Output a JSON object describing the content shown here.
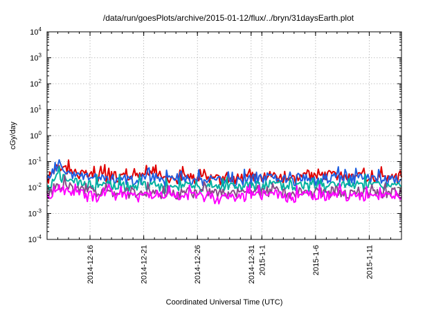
{
  "chart_data": {
    "type": "line",
    "title": "/data/run/goesPlots/archive/2015-01-12/flux/../bryn/31daysEarth.plot",
    "xlabel": "Coordinated Universal Time (UTC)",
    "ylabel": "cGy/day",
    "yscale": "log",
    "ylim": [
      0.0001,
      10000
    ],
    "xlim": [
      "2014-12-12",
      "2015-01-14"
    ],
    "grid": true,
    "x_tick_labels": [
      "2014-12-16",
      "2014-12-21",
      "2014-12-26",
      "2014-12-31",
      "2015-1-1",
      "2015-1-6",
      "2015-1-11"
    ],
    "x_tick_dates": [
      "2014-12-16",
      "2014-12-21",
      "2014-12-26",
      "2014-12-31",
      "2015-01-01",
      "2015-01-06",
      "2015-01-11"
    ],
    "y_tick_labels": [
      {
        "base": "10",
        "exp": "-4"
      },
      {
        "base": "10",
        "exp": "-3"
      },
      {
        "base": "10",
        "exp": "-2"
      },
      {
        "base": "10",
        "exp": "-1"
      },
      {
        "base": "10",
        "exp": "0"
      },
      {
        "base": "10",
        "exp": "1"
      },
      {
        "base": "10",
        "exp": "2"
      },
      {
        "base": "10",
        "exp": "3"
      },
      {
        "base": "10",
        "exp": "4"
      }
    ],
    "y_tick_values": [
      0.0001,
      0.001,
      0.01,
      0.1,
      1,
      10,
      100,
      1000,
      10000
    ],
    "series": [
      {
        "color": "#e00000",
        "x": [
          "2014-12-12",
          "2014-12-13",
          "2014-12-14",
          "2014-12-15",
          "2014-12-16",
          "2014-12-17",
          "2014-12-18",
          "2014-12-19",
          "2014-12-20",
          "2014-12-21",
          "2014-12-22",
          "2014-12-23",
          "2014-12-24",
          "2014-12-25",
          "2014-12-26",
          "2014-12-27",
          "2014-12-28",
          "2014-12-29",
          "2014-12-30",
          "2014-12-31",
          "2015-01-01",
          "2015-01-02",
          "2015-01-03",
          "2015-01-04",
          "2015-01-05",
          "2015-01-06",
          "2015-01-07",
          "2015-01-08",
          "2015-01-09",
          "2015-01-10",
          "2015-01-11",
          "2015-01-12",
          "2015-01-13",
          "2015-01-14"
        ],
        "values": [
          0.02,
          0.09,
          0.05,
          0.035,
          0.03,
          0.028,
          0.03,
          0.027,
          0.025,
          0.03,
          0.04,
          0.022,
          0.025,
          0.028,
          0.024,
          0.026,
          0.022,
          0.025,
          0.023,
          0.028,
          0.03,
          0.032,
          0.025,
          0.024,
          0.03,
          0.026,
          0.028,
          0.032,
          0.024,
          0.03,
          0.026,
          0.028,
          0.024,
          0.025
        ]
      },
      {
        "color": "#1f5fe0",
        "x": [
          "2014-12-12",
          "2014-12-13",
          "2014-12-14",
          "2014-12-15",
          "2014-12-16",
          "2014-12-17",
          "2014-12-18",
          "2014-12-19",
          "2014-12-20",
          "2014-12-21",
          "2014-12-22",
          "2014-12-23",
          "2014-12-24",
          "2014-12-25",
          "2014-12-26",
          "2014-12-27",
          "2014-12-28",
          "2014-12-29",
          "2014-12-30",
          "2014-12-31",
          "2015-01-01",
          "2015-01-02",
          "2015-01-03",
          "2015-01-04",
          "2015-01-05",
          "2015-01-06",
          "2015-01-07",
          "2015-01-08",
          "2015-01-09",
          "2015-01-10",
          "2015-01-11",
          "2015-01-12",
          "2015-01-13",
          "2015-01-14"
        ],
        "values": [
          0.015,
          0.07,
          0.04,
          0.028,
          0.025,
          0.022,
          0.024,
          0.022,
          0.02,
          0.024,
          0.028,
          0.019,
          0.02,
          0.022,
          0.02,
          0.021,
          0.019,
          0.02,
          0.02,
          0.022,
          0.025,
          0.026,
          0.021,
          0.02,
          0.025,
          0.022,
          0.023,
          0.026,
          0.02,
          0.024,
          0.022,
          0.023,
          0.02,
          0.021
        ]
      },
      {
        "color": "#00b0a0",
        "x": [
          "2014-12-12",
          "2014-12-13",
          "2014-12-14",
          "2014-12-15",
          "2014-12-16",
          "2014-12-17",
          "2014-12-18",
          "2014-12-19",
          "2014-12-20",
          "2014-12-21",
          "2014-12-22",
          "2014-12-23",
          "2014-12-24",
          "2014-12-25",
          "2014-12-26",
          "2014-12-27",
          "2014-12-28",
          "2014-12-29",
          "2014-12-30",
          "2014-12-31",
          "2015-01-01",
          "2015-01-02",
          "2015-01-03",
          "2015-01-04",
          "2015-01-05",
          "2015-01-06",
          "2015-01-07",
          "2015-01-08",
          "2015-01-09",
          "2015-01-10",
          "2015-01-11",
          "2015-01-12",
          "2015-01-13",
          "2015-01-14"
        ],
        "values": [
          0.008,
          0.03,
          0.02,
          0.014,
          0.013,
          0.012,
          0.013,
          0.012,
          0.011,
          0.012,
          0.014,
          0.01,
          0.011,
          0.012,
          0.011,
          0.012,
          0.01,
          0.011,
          0.011,
          0.012,
          0.013,
          0.014,
          0.011,
          0.011,
          0.013,
          0.012,
          0.012,
          0.014,
          0.011,
          0.013,
          0.012,
          0.012,
          0.011,
          0.011
        ]
      },
      {
        "color": "#8a4a8a",
        "x": [
          "2014-12-12",
          "2014-12-13",
          "2014-12-14",
          "2014-12-15",
          "2014-12-16",
          "2014-12-17",
          "2014-12-18",
          "2014-12-19",
          "2014-12-20",
          "2014-12-21",
          "2014-12-22",
          "2014-12-23",
          "2014-12-24",
          "2014-12-25",
          "2014-12-26",
          "2014-12-27",
          "2014-12-28",
          "2014-12-29",
          "2014-12-30",
          "2014-12-31",
          "2015-01-01",
          "2015-01-02",
          "2015-01-03",
          "2015-01-04",
          "2015-01-05",
          "2015-01-06",
          "2015-01-07",
          "2015-01-08",
          "2015-01-09",
          "2015-01-10",
          "2015-01-11",
          "2015-01-12",
          "2015-01-13",
          "2015-01-14"
        ],
        "values": [
          0.005,
          0.015,
          0.009,
          0.008,
          0.007,
          0.007,
          0.0075,
          0.007,
          0.0065,
          0.007,
          0.008,
          0.006,
          0.0065,
          0.007,
          0.0065,
          0.007,
          0.006,
          0.0065,
          0.0065,
          0.007,
          0.0075,
          0.008,
          0.0065,
          0.0065,
          0.0075,
          0.007,
          0.007,
          0.008,
          0.0065,
          0.0075,
          0.007,
          0.007,
          0.0065,
          0.0065
        ]
      },
      {
        "color": "#ff00ff",
        "x": [
          "2014-12-12",
          "2014-12-13",
          "2014-12-14",
          "2014-12-15",
          "2014-12-16",
          "2014-12-17",
          "2014-12-18",
          "2014-12-19",
          "2014-12-20",
          "2014-12-21",
          "2014-12-22",
          "2014-12-23",
          "2014-12-24",
          "2014-12-25",
          "2014-12-26",
          "2014-12-27",
          "2014-12-28",
          "2014-12-29",
          "2014-12-30",
          "2014-12-31",
          "2015-01-01",
          "2015-01-02",
          "2015-01-03",
          "2015-01-04",
          "2015-01-05",
          "2015-01-06",
          "2015-01-07",
          "2015-01-08",
          "2015-01-09",
          "2015-01-10",
          "2015-01-11",
          "2015-01-12",
          "2015-01-13",
          "2015-01-14"
        ],
        "values": [
          0.004,
          0.012,
          0.007,
          0.006,
          0.005,
          0.005,
          0.0055,
          0.005,
          0.0045,
          0.005,
          0.006,
          0.004,
          0.0045,
          0.005,
          0.0045,
          0.005,
          0.004,
          0.0045,
          0.0045,
          0.005,
          0.0055,
          0.006,
          0.0045,
          0.0045,
          0.0055,
          0.005,
          0.005,
          0.006,
          0.0045,
          0.0055,
          0.005,
          0.005,
          0.0045,
          0.0045
        ]
      }
    ]
  }
}
